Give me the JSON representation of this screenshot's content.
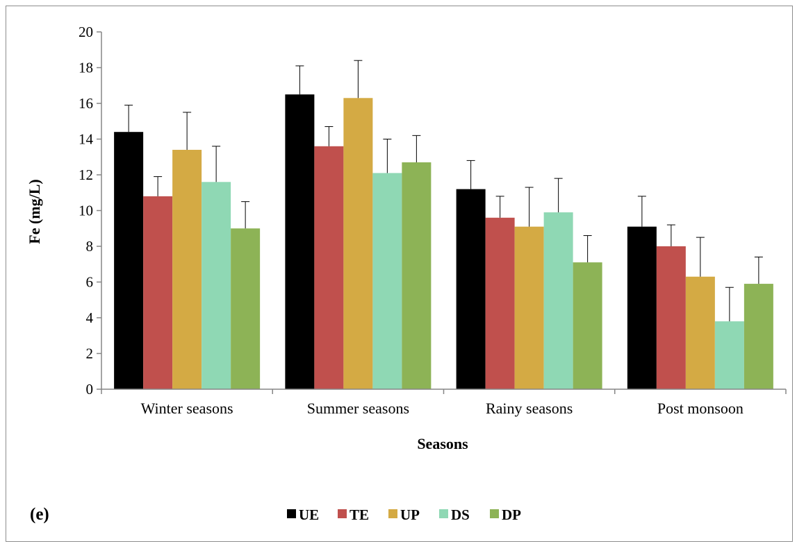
{
  "panel_label": "(e)",
  "chart_data": {
    "type": "bar",
    "xlabel": "Seasons",
    "ylabel": "Fe (mg/L)",
    "ylim": [
      0,
      20
    ],
    "yticks": [
      0,
      2,
      4,
      6,
      8,
      10,
      12,
      14,
      16,
      18,
      20
    ],
    "grid": false,
    "legend_position": "bottom",
    "categories": [
      "Winter seasons",
      "Summer seasons",
      "Rainy seasons",
      "Post monsoon"
    ],
    "series": [
      {
        "name": "UE",
        "color": "#000000",
        "values": [
          14.4,
          16.5,
          11.2,
          9.1
        ],
        "errors": [
          1.5,
          1.6,
          1.6,
          1.7
        ]
      },
      {
        "name": "TE",
        "color": "#c0504d",
        "values": [
          10.8,
          13.6,
          9.6,
          8.0
        ],
        "errors": [
          1.1,
          1.1,
          1.2,
          1.2
        ]
      },
      {
        "name": "UP",
        "color": "#d4aa44",
        "values": [
          13.4,
          16.3,
          9.1,
          6.3
        ],
        "errors": [
          2.1,
          2.1,
          2.2,
          2.2
        ]
      },
      {
        "name": "DS",
        "color": "#8fd8b4",
        "values": [
          11.6,
          12.1,
          9.9,
          3.8
        ],
        "errors": [
          2.0,
          1.9,
          1.9,
          1.9
        ]
      },
      {
        "name": "DP",
        "color": "#8db356",
        "values": [
          9.0,
          12.7,
          7.1,
          5.9
        ],
        "errors": [
          1.5,
          1.5,
          1.5,
          1.5
        ]
      }
    ]
  }
}
